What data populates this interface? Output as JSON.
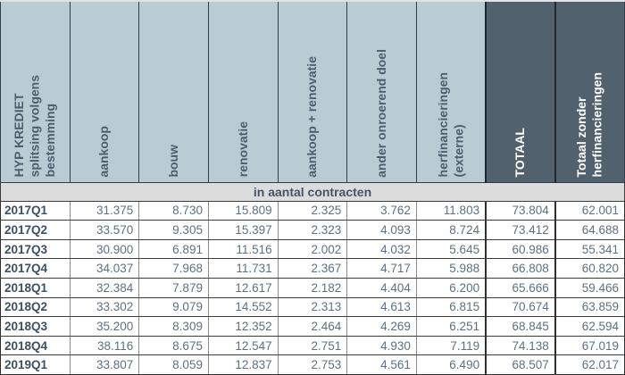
{
  "title": "HYP KREDIET splitsing volgens bestemming",
  "table": {
    "corner_header": "HYP KREDIET\nsplitsing volgens\nbestemming",
    "section_title": "in aantal contracten",
    "columns": [
      {
        "label": "aankoop",
        "variant": "light"
      },
      {
        "label": "bouw",
        "variant": "light"
      },
      {
        "label": "renovatie",
        "variant": "light"
      },
      {
        "label": "aankoop + renovatie",
        "variant": "light"
      },
      {
        "label": "ander onroerend doel",
        "variant": "light"
      },
      {
        "label": "herfinancieringen\n(externe)",
        "variant": "light"
      },
      {
        "label": "TOTAAL",
        "variant": "dark"
      },
      {
        "label": "Totaal zonder\nherfinancieringen",
        "variant": "dark"
      }
    ],
    "rows": [
      {
        "period": "2017Q1",
        "values": [
          "31.375",
          "8.730",
          "15.809",
          "2.325",
          "3.762",
          "11.803",
          "73.804",
          "62.001"
        ]
      },
      {
        "period": "2017Q2",
        "values": [
          "33.570",
          "9.305",
          "15.397",
          "2.323",
          "4.093",
          "8.724",
          "73.412",
          "64.688"
        ]
      },
      {
        "period": "2017Q3",
        "values": [
          "30.900",
          "6.891",
          "11.516",
          "2.002",
          "4.032",
          "5.645",
          "60.986",
          "55.341"
        ]
      },
      {
        "period": "2017Q4",
        "values": [
          "34.037",
          "7.968",
          "11.731",
          "2.367",
          "4.717",
          "5.988",
          "66.808",
          "60.820"
        ]
      },
      {
        "period": "2018Q1",
        "values": [
          "32.384",
          "7.879",
          "12.617",
          "2.182",
          "4.404",
          "6.200",
          "65.666",
          "59.466"
        ]
      },
      {
        "period": "2018Q2",
        "values": [
          "33.302",
          "9.079",
          "14.552",
          "2.313",
          "4.613",
          "6.815",
          "70.674",
          "63.859"
        ]
      },
      {
        "period": "2018Q3",
        "values": [
          "35.200",
          "8.309",
          "12.352",
          "2.464",
          "4.269",
          "6.251",
          "68.845",
          "62.594"
        ]
      },
      {
        "period": "2018Q4",
        "values": [
          "38.116",
          "8.675",
          "12.547",
          "2.751",
          "4.930",
          "7.119",
          "74.138",
          "67.019"
        ]
      },
      {
        "period": "2019Q1",
        "values": [
          "33.807",
          "8.059",
          "12.837",
          "2.753",
          "4.561",
          "6.490",
          "68.507",
          "62.017"
        ]
      }
    ]
  },
  "colors": {
    "header_light_bg": "#b9cbd3",
    "header_dark_bg": "#51626e",
    "section_band_bg": "#dcdcdc",
    "header_text": "#4d5e6d",
    "header_dark_text": "#ffffff",
    "row_label_text": "#3d4f63",
    "data_text": "#5f7082",
    "grid_dark": "#3c3c3c",
    "grid_light": "#8c8c8c"
  },
  "chart_data": {
    "type": "table",
    "title": "HYP KREDIET splitsing volgens bestemming — in aantal contracten",
    "columns": [
      "aankoop",
      "bouw",
      "renovatie",
      "aankoop + renovatie",
      "ander onroerend doel",
      "herfinancieringen (externe)",
      "TOTAAL",
      "Totaal zonder herfinancieringen"
    ],
    "row_labels": [
      "2017Q1",
      "2017Q2",
      "2017Q3",
      "2017Q4",
      "2018Q1",
      "2018Q2",
      "2018Q3",
      "2018Q4",
      "2019Q1"
    ],
    "values": [
      [
        31375,
        8730,
        15809,
        2325,
        3762,
        11803,
        73804,
        62001
      ],
      [
        33570,
        9305,
        15397,
        2323,
        4093,
        8724,
        73412,
        64688
      ],
      [
        30900,
        6891,
        11516,
        2002,
        4032,
        5645,
        60986,
        55341
      ],
      [
        34037,
        7968,
        11731,
        2367,
        4717,
        5988,
        66808,
        60820
      ],
      [
        32384,
        7879,
        12617,
        2182,
        4404,
        6200,
        65666,
        59466
      ],
      [
        33302,
        9079,
        14552,
        2313,
        4613,
        6815,
        70674,
        63859
      ],
      [
        35200,
        8309,
        12352,
        2464,
        4269,
        6251,
        68845,
        62594
      ],
      [
        38116,
        8675,
        12547,
        2751,
        4930,
        7119,
        74138,
        67019
      ],
      [
        33807,
        8059,
        12837,
        2753,
        4561,
        6490,
        68507,
        62017
      ]
    ]
  }
}
